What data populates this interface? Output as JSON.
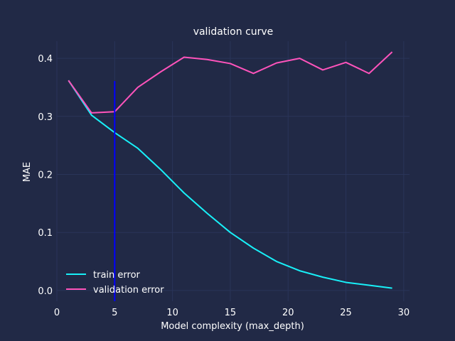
{
  "chart_data": {
    "type": "line",
    "title": "validation curve",
    "xlabel": "Model complexity (max_depth)",
    "ylabel": "MAE",
    "xlim": [
      0,
      30.5
    ],
    "ylim": [
      -0.0185,
      0.4295
    ],
    "xticks": [
      0,
      5,
      10,
      15,
      20,
      25,
      30
    ],
    "yticks": [
      0.0,
      0.1,
      0.2,
      0.3,
      0.4
    ],
    "xtick_labels": [
      "0",
      "5",
      "10",
      "15",
      "20",
      "25",
      "30"
    ],
    "ytick_labels": [
      "0.0",
      "0.1",
      "0.2",
      "0.3",
      "0.4"
    ],
    "grid": true,
    "legend_position": "lower-left",
    "background_color": "#212946",
    "grid_color": "#2A3459",
    "x": [
      1,
      3,
      5,
      7,
      9,
      11,
      13,
      15,
      17,
      19,
      21,
      23,
      25,
      27,
      29
    ],
    "series": [
      {
        "name": "train error",
        "color": "#18F0F8",
        "values": [
          0.362,
          0.302,
          0.272,
          0.245,
          0.208,
          0.168,
          0.133,
          0.1,
          0.073,
          0.05,
          0.034,
          0.023,
          0.014,
          0.009,
          0.004
        ]
      },
      {
        "name": "validation error",
        "color": "#FE53BB",
        "values": [
          0.362,
          0.306,
          0.308,
          0.35,
          0.377,
          0.402,
          0.398,
          0.391,
          0.374,
          0.392,
          0.4,
          0.38,
          0.393,
          0.374,
          0.411
        ]
      }
    ],
    "vline": {
      "x": 5,
      "y_from": -0.0185,
      "y_to": 0.361,
      "color": "#0000FF"
    }
  }
}
